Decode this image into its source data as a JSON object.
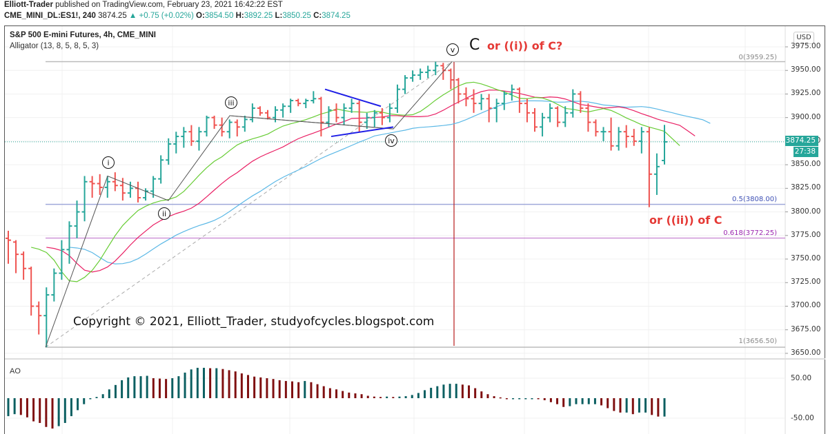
{
  "header": {
    "publisher": "Elliott-Trader",
    "published_text": "published on TradingView.com, February 23, 2021 16:42:22 EST",
    "symbol": "CME_MINI_DL:ES1!, 240",
    "last": "3874.25",
    "change": "+0.75 (+0.02%)",
    "o_label": "O:",
    "o_value": "3854.50",
    "h_label": "H:",
    "h_value": "3892.25",
    "l_label": "L:",
    "l_value": "3850.25",
    "c_label": "C:",
    "c_value": "3874.25"
  },
  "chart": {
    "title": "S&P 500 E-mini Futures, 4h, CME_MINI",
    "indicator": "Alligator (13, 8, 5, 8, 5, 3)",
    "currency": "USD",
    "price_tag": "3874.25",
    "countdown": "27:38",
    "copyright": "Copyright © 2021, Elliott_Trader, studyofcycles.blogspot.com",
    "annotation_c": "C",
    "annotation_alt1": "or ((i)) of C?",
    "annotation_alt2": "or ((ii)) of C",
    "wave_labels": [
      "i",
      "ii",
      "iii",
      "iv",
      "v"
    ],
    "fib_levels": [
      {
        "label": "0(3959.25)",
        "price": 3959.25,
        "color": "#9e9e9e"
      },
      {
        "label": "0.5(3808.00)",
        "price": 3808.0,
        "color": "#3f51b5"
      },
      {
        "label": "0.618(3772.25)",
        "price": 3772.25,
        "color": "#9c27b0"
      },
      {
        "label": "1(3656.50)",
        "price": 3656.5,
        "color": "#9e9e9e"
      }
    ],
    "y_ticks": [
      "3975.00",
      "3950.00",
      "3925.00",
      "3900.00",
      "3875.00",
      "3850.00",
      "3825.00",
      "3800.00",
      "3775.00",
      "3750.00",
      "3725.00",
      "3700.00",
      "3675.00",
      "3650.00"
    ],
    "ao_label": "AO",
    "ao_ticks": [
      "50.00",
      "-50.00"
    ],
    "colors": {
      "up": "#26a69a",
      "down": "#ef5350",
      "jaw": "#5bb8e6",
      "teeth": "#e91e63",
      "lips": "#66cc33",
      "ao_up": "#0b5f61",
      "ao_down": "#7f0f10",
      "accent_red": "#e53935"
    }
  },
  "chart_data": {
    "type": "ohlc",
    "title": "S&P 500 E-mini Futures, 4h, CME_MINI",
    "xlabel": "",
    "ylabel": "USD",
    "ylim": [
      3645,
      3985
    ],
    "grid": true,
    "ohlc": [
      [
        3772,
        3780,
        3745,
        3770
      ],
      [
        3768,
        3770,
        3735,
        3755
      ],
      [
        3755,
        3758,
        3728,
        3740
      ],
      [
        3740,
        3742,
        3690,
        3700
      ],
      [
        3700,
        3705,
        3670,
        3690
      ],
      [
        3690,
        3720,
        3656.5,
        3712
      ],
      [
        3712,
        3740,
        3705,
        3735
      ],
      [
        3735,
        3770,
        3728,
        3760
      ],
      [
        3760,
        3790,
        3745,
        3785
      ],
      [
        3785,
        3812,
        3772,
        3800
      ],
      [
        3800,
        3838,
        3790,
        3832
      ],
      [
        3832,
        3838,
        3815,
        3830
      ],
      [
        3830,
        3840,
        3818,
        3826
      ],
      [
        3826,
        3838,
        3815,
        3832
      ],
      [
        3832,
        3842,
        3822,
        3828
      ],
      [
        3828,
        3836,
        3812,
        3820
      ],
      [
        3820,
        3832,
        3815,
        3825
      ],
      [
        3825,
        3832,
        3810,
        3815
      ],
      [
        3815,
        3825,
        3812,
        3822
      ],
      [
        3822,
        3838,
        3815,
        3835
      ],
      [
        3835,
        3860,
        3830,
        3855
      ],
      [
        3855,
        3878,
        3850,
        3872
      ],
      [
        3872,
        3885,
        3862,
        3880
      ],
      [
        3880,
        3890,
        3868,
        3885
      ],
      [
        3885,
        3892,
        3870,
        3875
      ],
      [
        3875,
        3890,
        3865,
        3885
      ],
      [
        3885,
        3902,
        3880,
        3900
      ],
      [
        3900,
        3902,
        3888,
        3892
      ],
      [
        3892,
        3900,
        3880,
        3885
      ],
      [
        3885,
        3898,
        3878,
        3895
      ],
      [
        3895,
        3898,
        3880,
        3890
      ],
      [
        3890,
        3902,
        3885,
        3898
      ],
      [
        3898,
        3915,
        3895,
        3910
      ],
      [
        3910,
        3912,
        3902,
        3905
      ],
      [
        3905,
        3908,
        3898,
        3900
      ],
      [
        3900,
        3912,
        3895,
        3908
      ],
      [
        3908,
        3915,
        3900,
        3912
      ],
      [
        3912,
        3920,
        3905,
        3918
      ],
      [
        3918,
        3920,
        3912,
        3915
      ],
      [
        3915,
        3920,
        3910,
        3918
      ],
      [
        3918,
        3928,
        3915,
        3920
      ],
      [
        3920,
        3922,
        3880,
        3895
      ],
      [
        3895,
        3912,
        3890,
        3908
      ],
      [
        3908,
        3915,
        3895,
        3900
      ],
      [
        3900,
        3915,
        3892,
        3910
      ],
      [
        3910,
        3920,
        3905,
        3915
      ],
      [
        3915,
        3918,
        3885,
        3895
      ],
      [
        3895,
        3905,
        3888,
        3900
      ],
      [
        3900,
        3908,
        3890,
        3905
      ],
      [
        3905,
        3910,
        3892,
        3900
      ],
      [
        3900,
        3915,
        3895,
        3910
      ],
      [
        3910,
        3935,
        3905,
        3930
      ],
      [
        3930,
        3945,
        3925,
        3942
      ],
      [
        3942,
        3950,
        3938,
        3945
      ],
      [
        3945,
        3952,
        3940,
        3948
      ],
      [
        3948,
        3955,
        3942,
        3950
      ],
      [
        3950,
        3959.25,
        3945,
        3955
      ],
      [
        3955,
        3958,
        3940,
        3950
      ],
      [
        3950,
        3952,
        3930,
        3940
      ],
      [
        3940,
        3942,
        3915,
        3925
      ],
      [
        3925,
        3932,
        3912,
        3920
      ],
      [
        3920,
        3930,
        3905,
        3915
      ],
      [
        3915,
        3925,
        3908,
        3920
      ],
      [
        3920,
        3925,
        3895,
        3910
      ],
      [
        3910,
        3920,
        3895,
        3915
      ],
      [
        3915,
        3928,
        3908,
        3925
      ],
      [
        3925,
        3935,
        3918,
        3930
      ],
      [
        3930,
        3932,
        3905,
        3915
      ],
      [
        3915,
        3920,
        3895,
        3905
      ],
      [
        3905,
        3910,
        3885,
        3890
      ],
      [
        3890,
        3905,
        3880,
        3900
      ],
      [
        3900,
        3915,
        3895,
        3910
      ],
      [
        3910,
        3912,
        3890,
        3895
      ],
      [
        3895,
        3912,
        3890,
        3905
      ],
      [
        3905,
        3930,
        3900,
        3925
      ],
      [
        3925,
        3928,
        3905,
        3910
      ],
      [
        3910,
        3915,
        3885,
        3895
      ],
      [
        3895,
        3898,
        3880,
        3885
      ],
      [
        3885,
        3890,
        3875,
        3885
      ],
      [
        3885,
        3900,
        3865,
        3870
      ],
      [
        3870,
        3890,
        3865,
        3885
      ],
      [
        3885,
        3892,
        3868,
        3880
      ],
      [
        3880,
        3888,
        3870,
        3875
      ],
      [
        3875,
        3890,
        3862,
        3885
      ],
      [
        3885,
        3890,
        3805,
        3840
      ],
      [
        3840,
        3862,
        3818,
        3848
      ],
      [
        3854.5,
        3892.25,
        3850.25,
        3874.25
      ]
    ],
    "alligator": {
      "jaw_color": "#5bb8e6",
      "teeth_color": "#e91e63",
      "lips_color": "#66cc33"
    },
    "ao": {
      "values": [
        -45,
        -40,
        -42,
        -48,
        -58,
        -62,
        -72,
        -76,
        -70,
        -62,
        -45,
        -30,
        -15,
        -2,
        3,
        10,
        22,
        33,
        45,
        52,
        55,
        55,
        56,
        50,
        49,
        48,
        50,
        55,
        64,
        72,
        76,
        76,
        75,
        75,
        73,
        70,
        67,
        62,
        58,
        54,
        52,
        50,
        48,
        45,
        43,
        42,
        40,
        43,
        40,
        35,
        30,
        25,
        22,
        18,
        14,
        12,
        10,
        6,
        4,
        3,
        4,
        3,
        4,
        5,
        8,
        13,
        20,
        26,
        30,
        34,
        36,
        36,
        34,
        32,
        25,
        17,
        10,
        5,
        2,
        -1,
        -1,
        -1,
        -1,
        -1,
        -2,
        -5,
        -10,
        -15,
        -22,
        -20,
        -15,
        -15,
        -15,
        -15,
        -18,
        -25,
        -32,
        -36,
        -36,
        -40,
        -36,
        -36,
        -42,
        -46,
        -46
      ],
      "ylim": [
        -70,
        80
      ],
      "ticks": [
        50,
        -50
      ]
    },
    "fib_retracement": {
      "0": 3959.25,
      "0.5": 3808.0,
      "0.618": 3772.25,
      "1": 3656.5
    },
    "annotations": [
      "(i)",
      "(ii)",
      "(iii)",
      "(iv)",
      "(v)",
      "C",
      "or ((i)) of C?",
      "or ((ii)) of C"
    ]
  }
}
